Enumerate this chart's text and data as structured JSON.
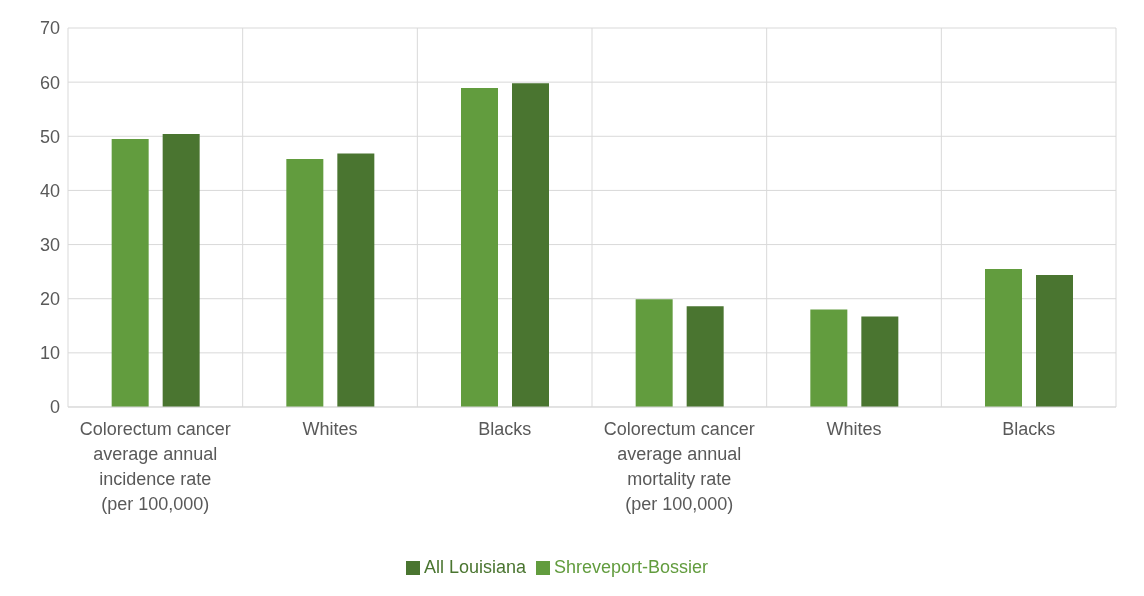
{
  "chart_data": {
    "type": "bar",
    "categories": [
      "Colorectum cancer average annual incidence rate  (per 100,000)",
      "Whites",
      "Blacks",
      "Colorectum cancer average annual mortality rate  (per 100,000)",
      "Whites",
      "Blacks"
    ],
    "series": [
      {
        "name": "Shreveport-Bossier",
        "color": "#629c3e",
        "values": [
          49.5,
          45.8,
          58.9,
          19.9,
          18.0,
          25.5
        ]
      },
      {
        "name": "All Louisiana",
        "color": "#4a7530",
        "values": [
          50.4,
          46.8,
          59.8,
          18.6,
          16.7,
          24.4
        ]
      }
    ],
    "ylim": [
      0,
      70
    ],
    "yticks": [
      0,
      10,
      20,
      30,
      40,
      50,
      60,
      70
    ],
    "grid": true,
    "legend": "bottom"
  }
}
